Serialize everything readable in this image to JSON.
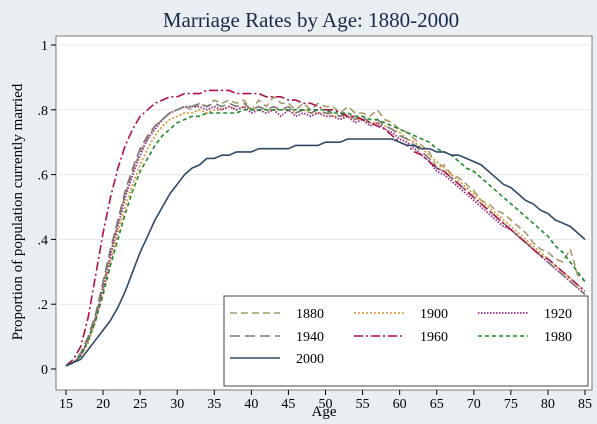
{
  "chart_data": {
    "type": "line",
    "title": "Marriage Rates by Age: 1880-2000",
    "xlabel": "Age",
    "ylabel": "Proportion of population currently married",
    "xlim": [
      15,
      85
    ],
    "ylim": [
      0,
      1
    ],
    "x_ticks": [
      "15",
      "20",
      "25",
      "30",
      "35",
      "40",
      "45",
      "50",
      "55",
      "60",
      "65",
      "70",
      "75",
      "80",
      "85"
    ],
    "y_ticks": [
      "0",
      ".2",
      ".4",
      ".6",
      ".8",
      "1"
    ],
    "grid": "horizontal",
    "legend_position": "bottom-right",
    "ages": [
      15,
      16,
      17,
      18,
      19,
      20,
      21,
      22,
      23,
      24,
      25,
      26,
      27,
      28,
      29,
      30,
      31,
      32,
      33,
      34,
      35,
      36,
      37,
      38,
      39,
      40,
      41,
      42,
      43,
      44,
      45,
      46,
      47,
      48,
      49,
      50,
      51,
      52,
      53,
      54,
      55,
      56,
      57,
      58,
      59,
      60,
      61,
      62,
      63,
      64,
      65,
      66,
      67,
      68,
      69,
      70,
      71,
      72,
      73,
      74,
      75,
      76,
      77,
      78,
      79,
      80,
      81,
      82,
      83,
      84,
      85
    ],
    "series": [
      {
        "name": "1880",
        "color": "#a89a6a",
        "dash": "7,4",
        "width": 1.6,
        "values": [
          0.01,
          0.02,
          0.04,
          0.09,
          0.16,
          0.26,
          0.36,
          0.45,
          0.54,
          0.61,
          0.67,
          0.71,
          0.75,
          0.77,
          0.79,
          0.8,
          0.81,
          0.8,
          0.82,
          0.81,
          0.83,
          0.82,
          0.83,
          0.82,
          0.83,
          0.8,
          0.83,
          0.81,
          0.84,
          0.82,
          0.82,
          0.8,
          0.82,
          0.8,
          0.82,
          0.81,
          0.81,
          0.79,
          0.81,
          0.79,
          0.79,
          0.78,
          0.8,
          0.77,
          0.76,
          0.74,
          0.73,
          0.71,
          0.69,
          0.67,
          0.62,
          0.63,
          0.6,
          0.59,
          0.57,
          0.55,
          0.52,
          0.51,
          0.49,
          0.48,
          0.46,
          0.44,
          0.42,
          0.39,
          0.37,
          0.36,
          0.34,
          0.33,
          0.37,
          0.29,
          0.27
        ]
      },
      {
        "name": "1900",
        "color": "#e0922a",
        "dash": "2,2",
        "width": 1.6,
        "values": [
          0.01,
          0.02,
          0.04,
          0.08,
          0.15,
          0.24,
          0.33,
          0.42,
          0.5,
          0.57,
          0.63,
          0.68,
          0.72,
          0.75,
          0.77,
          0.78,
          0.79,
          0.79,
          0.8,
          0.79,
          0.8,
          0.8,
          0.81,
          0.8,
          0.81,
          0.8,
          0.81,
          0.8,
          0.8,
          0.8,
          0.8,
          0.79,
          0.8,
          0.79,
          0.79,
          0.79,
          0.78,
          0.78,
          0.78,
          0.77,
          0.77,
          0.76,
          0.76,
          0.75,
          0.74,
          0.73,
          0.71,
          0.7,
          0.68,
          0.66,
          0.64,
          0.62,
          0.6,
          0.58,
          0.56,
          0.54,
          0.52,
          0.5,
          0.48,
          0.46,
          0.44,
          0.42,
          0.4,
          0.38,
          0.36,
          0.34,
          0.32,
          0.3,
          0.28,
          0.26,
          0.24
        ]
      },
      {
        "name": "1920",
        "color": "#9b2a8a",
        "dash": "1.5,1.5",
        "width": 1.8,
        "values": [
          0.01,
          0.02,
          0.04,
          0.09,
          0.16,
          0.25,
          0.35,
          0.44,
          0.53,
          0.6,
          0.66,
          0.71,
          0.74,
          0.77,
          0.79,
          0.8,
          0.81,
          0.81,
          0.81,
          0.8,
          0.81,
          0.8,
          0.81,
          0.8,
          0.81,
          0.79,
          0.8,
          0.79,
          0.8,
          0.78,
          0.8,
          0.78,
          0.79,
          0.78,
          0.79,
          0.78,
          0.78,
          0.77,
          0.78,
          0.76,
          0.77,
          0.75,
          0.76,
          0.74,
          0.73,
          0.71,
          0.7,
          0.68,
          0.66,
          0.64,
          0.61,
          0.6,
          0.58,
          0.56,
          0.54,
          0.52,
          0.5,
          0.48,
          0.46,
          0.44,
          0.43,
          0.41,
          0.39,
          0.37,
          0.35,
          0.33,
          0.31,
          0.29,
          0.27,
          0.25,
          0.23
        ]
      },
      {
        "name": "1940",
        "color": "#7a7a7a",
        "dash": "10,5",
        "width": 1.6,
        "values": [
          0.01,
          0.02,
          0.05,
          0.1,
          0.17,
          0.27,
          0.37,
          0.46,
          0.55,
          0.62,
          0.68,
          0.72,
          0.75,
          0.77,
          0.79,
          0.8,
          0.81,
          0.81,
          0.82,
          0.81,
          0.82,
          0.81,
          0.82,
          0.81,
          0.82,
          0.8,
          0.81,
          0.8,
          0.81,
          0.8,
          0.81,
          0.79,
          0.8,
          0.79,
          0.8,
          0.79,
          0.79,
          0.78,
          0.79,
          0.77,
          0.78,
          0.76,
          0.77,
          0.75,
          0.74,
          0.72,
          0.71,
          0.69,
          0.67,
          0.65,
          0.62,
          0.61,
          0.59,
          0.57,
          0.55,
          0.53,
          0.51,
          0.49,
          0.47,
          0.45,
          0.43,
          0.41,
          0.39,
          0.37,
          0.35,
          0.33,
          0.31,
          0.29,
          0.27,
          0.25,
          0.23
        ]
      },
      {
        "name": "1960",
        "color": "#b01040",
        "dash": "9,3,2,3",
        "width": 1.6,
        "values": [
          0.01,
          0.03,
          0.07,
          0.16,
          0.29,
          0.42,
          0.53,
          0.62,
          0.69,
          0.74,
          0.78,
          0.8,
          0.82,
          0.83,
          0.84,
          0.84,
          0.85,
          0.85,
          0.85,
          0.86,
          0.86,
          0.86,
          0.86,
          0.85,
          0.85,
          0.85,
          0.85,
          0.84,
          0.84,
          0.84,
          0.83,
          0.83,
          0.82,
          0.82,
          0.81,
          0.8,
          0.8,
          0.79,
          0.78,
          0.78,
          0.77,
          0.76,
          0.75,
          0.74,
          0.72,
          0.7,
          0.69,
          0.67,
          0.66,
          0.64,
          0.62,
          0.61,
          0.59,
          0.57,
          0.55,
          0.53,
          0.51,
          0.49,
          0.47,
          0.45,
          0.43,
          0.41,
          0.39,
          0.37,
          0.35,
          0.34,
          0.32,
          0.3,
          0.28,
          0.26,
          0.24
        ]
      },
      {
        "name": "1980",
        "color": "#1f8a2a",
        "dash": "4,3",
        "width": 1.6,
        "values": [
          0.01,
          0.02,
          0.04,
          0.09,
          0.15,
          0.23,
          0.32,
          0.4,
          0.48,
          0.55,
          0.61,
          0.65,
          0.69,
          0.72,
          0.74,
          0.76,
          0.77,
          0.78,
          0.78,
          0.79,
          0.79,
          0.79,
          0.79,
          0.79,
          0.8,
          0.8,
          0.8,
          0.8,
          0.8,
          0.8,
          0.8,
          0.8,
          0.8,
          0.8,
          0.8,
          0.8,
          0.79,
          0.79,
          0.79,
          0.78,
          0.78,
          0.77,
          0.77,
          0.76,
          0.75,
          0.74,
          0.73,
          0.72,
          0.71,
          0.7,
          0.68,
          0.67,
          0.66,
          0.64,
          0.62,
          0.61,
          0.59,
          0.57,
          0.55,
          0.53,
          0.51,
          0.49,
          0.47,
          0.45,
          0.43,
          0.41,
          0.38,
          0.36,
          0.33,
          0.3,
          0.27
        ]
      },
      {
        "name": "2000",
        "color": "#2e4a66",
        "dash": "",
        "width": 1.6,
        "values": [
          0.01,
          0.02,
          0.03,
          0.06,
          0.09,
          0.12,
          0.15,
          0.19,
          0.24,
          0.3,
          0.36,
          0.41,
          0.46,
          0.5,
          0.54,
          0.57,
          0.6,
          0.62,
          0.63,
          0.65,
          0.65,
          0.66,
          0.66,
          0.67,
          0.67,
          0.67,
          0.68,
          0.68,
          0.68,
          0.68,
          0.68,
          0.69,
          0.69,
          0.69,
          0.69,
          0.7,
          0.7,
          0.7,
          0.71,
          0.71,
          0.71,
          0.71,
          0.71,
          0.71,
          0.71,
          0.7,
          0.69,
          0.69,
          0.68,
          0.68,
          0.67,
          0.67,
          0.66,
          0.66,
          0.65,
          0.64,
          0.63,
          0.61,
          0.59,
          0.57,
          0.56,
          0.54,
          0.52,
          0.51,
          0.49,
          0.48,
          0.46,
          0.45,
          0.44,
          0.42,
          0.4
        ]
      }
    ]
  }
}
